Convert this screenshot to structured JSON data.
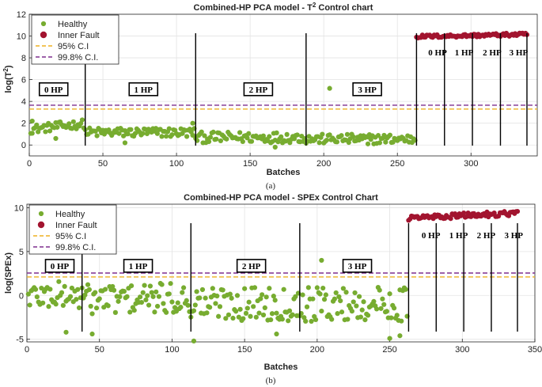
{
  "chart_data": [
    {
      "type": "scatter",
      "title": "Combined-HP PCA model - T",
      "title_sup": "2",
      "title_suffix": " Control chart",
      "xlabel": "Batches",
      "ylabel": "log(T",
      "ylabel_sup": "2",
      "ylabel_suffix": ")",
      "caption": "(a)",
      "xlim": [
        0,
        345
      ],
      "ylim": [
        -1,
        12
      ],
      "xticks": [
        0,
        50,
        100,
        150,
        200,
        250,
        300
      ],
      "yticks": [
        0,
        2,
        4,
        6,
        8,
        10,
        12
      ],
      "grid": true,
      "legend_position": "top-left",
      "legend": [
        "Healthy",
        "Inner Fault",
        "95% C.I",
        "99.8% C.I."
      ],
      "colors": {
        "healthy": "#77AC30",
        "fault": "#A2142F",
        "ci95": "#EDB120",
        "ci998": "#7E2F8E"
      },
      "ci95": 3.3,
      "ci998": 3.65,
      "separators": [
        38,
        113,
        188,
        263,
        282,
        301,
        320,
        338
      ],
      "segment_labels": [
        {
          "text": "0 HP",
          "x": 9,
          "y": 4.9,
          "boxed": true
        },
        {
          "text": "1 HP",
          "x": 70,
          "y": 4.9,
          "boxed": true
        },
        {
          "text": "2 HP",
          "x": 148,
          "y": 4.9,
          "boxed": true
        },
        {
          "text": "3 HP",
          "x": 222,
          "y": 4.9,
          "boxed": true
        },
        {
          "text": "0 HP",
          "x": 271,
          "y": 8.3,
          "boxed": false
        },
        {
          "text": "1 HP",
          "x": 289,
          "y": 8.3,
          "boxed": false
        },
        {
          "text": "2 HP",
          "x": 308,
          "y": 8.3,
          "boxed": false
        },
        {
          "text": "3 HP",
          "x": 326,
          "y": 8.3,
          "boxed": false
        }
      ],
      "series": [
        {
          "name": "Healthy",
          "segments": [
            {
              "x_start": 1,
              "x_end": 37,
              "base": 1.7,
              "amp": 0.4,
              "trend": 0.5
            },
            {
              "x_start": 38,
              "x_end": 112,
              "base": 1.15,
              "amp": 0.45,
              "trend": 0.0
            },
            {
              "x_start": 113,
              "x_end": 187,
              "base": 0.7,
              "amp": 0.5,
              "trend": 0.0
            },
            {
              "x_start": 188,
              "x_end": 262,
              "base": 0.55,
              "amp": 0.45,
              "trend": 0.0
            }
          ],
          "points": [
            [
              2,
              2.2
            ],
            [
              18,
              0.6
            ],
            [
              65,
              0.2
            ],
            [
              111,
              2.0
            ],
            [
              167,
              -0.2
            ],
            [
              204,
              5.2
            ],
            [
              230,
              0.1
            ]
          ]
        },
        {
          "name": "Inner Fault",
          "segments": [
            {
              "x_start": 263,
              "x_end": 338,
              "base": 10.05,
              "amp": 0.15,
              "trend": 0.2
            }
          ],
          "points": []
        }
      ]
    },
    {
      "type": "scatter",
      "title": "Combined-HP PCA model - SPEx Control Chart",
      "title_sup": "",
      "title_suffix": "",
      "xlabel": "Batches",
      "ylabel": "log(SPEx)",
      "ylabel_sup": "",
      "ylabel_suffix": "",
      "caption": "(b)",
      "xlim": [
        0,
        350
      ],
      "ylim": [
        -5.3,
        10.4
      ],
      "xticks": [
        0,
        50,
        100,
        150,
        200,
        250,
        300,
        350
      ],
      "yticks": [
        -5,
        0,
        5,
        10
      ],
      "grid": true,
      "legend_position": "top-left",
      "legend": [
        "Healthy",
        "Inner Fault",
        "95% C.I",
        "99.8% C.I."
      ],
      "colors": {
        "healthy": "#77AC30",
        "fault": "#A2142F",
        "ci95": "#EDB120",
        "ci998": "#7E2F8E"
      },
      "ci95": 2.1,
      "ci998": 2.55,
      "separators": [
        38,
        113,
        188,
        263,
        282,
        301,
        320,
        338
      ],
      "segment_labels": [
        {
          "text": "0 HP",
          "x": 15,
          "y": 3.1,
          "boxed": true
        },
        {
          "text": "1 HP",
          "x": 69,
          "y": 3.1,
          "boxed": true
        },
        {
          "text": "2 HP",
          "x": 147,
          "y": 3.1,
          "boxed": true
        },
        {
          "text": "3 HP",
          "x": 220,
          "y": 3.1,
          "boxed": true
        },
        {
          "text": "0 HP",
          "x": 272,
          "y": 6.6,
          "boxed": false
        },
        {
          "text": "1 HP",
          "x": 291,
          "y": 6.6,
          "boxed": false
        },
        {
          "text": "2 HP",
          "x": 310,
          "y": 6.6,
          "boxed": false
        },
        {
          "text": "3 HP",
          "x": 329,
          "y": 6.6,
          "boxed": false
        }
      ],
      "series": [
        {
          "name": "Healthy",
          "segments": [
            {
              "x_start": 1,
              "x_end": 37,
              "base": 0.0,
              "amp": 1.6,
              "trend": 0.0
            },
            {
              "x_start": 38,
              "x_end": 112,
              "base": -0.4,
              "amp": 1.8,
              "trend": 0.0
            },
            {
              "x_start": 113,
              "x_end": 187,
              "base": -0.9,
              "amp": 2.0,
              "trend": 0.0
            },
            {
              "x_start": 188,
              "x_end": 262,
              "base": -1.0,
              "amp": 2.0,
              "trend": 0.0
            }
          ],
          "points": [
            [
              27,
              -4.2
            ],
            [
              45,
              -4.4
            ],
            [
              115,
              -5.2
            ],
            [
              172,
              -4.4
            ],
            [
              203,
              4.0
            ],
            [
              250,
              -4.9
            ],
            [
              257,
              -4.6
            ]
          ]
        },
        {
          "name": "Inner Fault",
          "segments": [
            {
              "x_start": 263,
              "x_end": 338,
              "base": 9.1,
              "amp": 0.3,
              "trend": 0.6
            }
          ],
          "points": []
        }
      ]
    }
  ]
}
